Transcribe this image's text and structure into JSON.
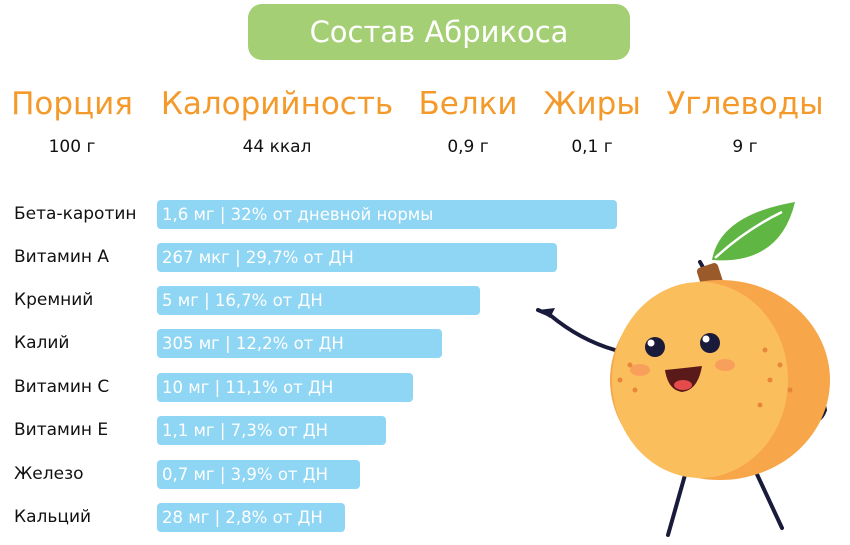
{
  "title": "Состав Абрикоса",
  "summary": [
    {
      "label": "Порция",
      "value": "100 г"
    },
    {
      "label": "Калорийность",
      "value": "44 ккал"
    },
    {
      "label": "Белки",
      "value": "0,9 г"
    },
    {
      "label": "Жиры",
      "value": "0,1 г"
    },
    {
      "label": "Углеводы",
      "value": "9 г"
    }
  ],
  "nutrients": [
    {
      "name": "Бета-каротин",
      "text": "1,6 мг | 32% от дневной нормы"
    },
    {
      "name": "Витамин А",
      "text": "267 мкг | 29,7% от ДН"
    },
    {
      "name": "Кремний",
      "text": "5 мг | 16,7% от ДН"
    },
    {
      "name": "Калий",
      "text": "305 мг | 12,2% от ДН"
    },
    {
      "name": "Витамин С",
      "text": "10 мг | 11,1% от ДН"
    },
    {
      "name": "Витамин Е",
      "text": "1,1 мг | 7,3% от ДН"
    },
    {
      "name": "Железо",
      "text": "0,7 мг | 3,9% от ДН"
    },
    {
      "name": "Кальций",
      "text": "28 мг | 2,8% от ДН"
    }
  ]
}
